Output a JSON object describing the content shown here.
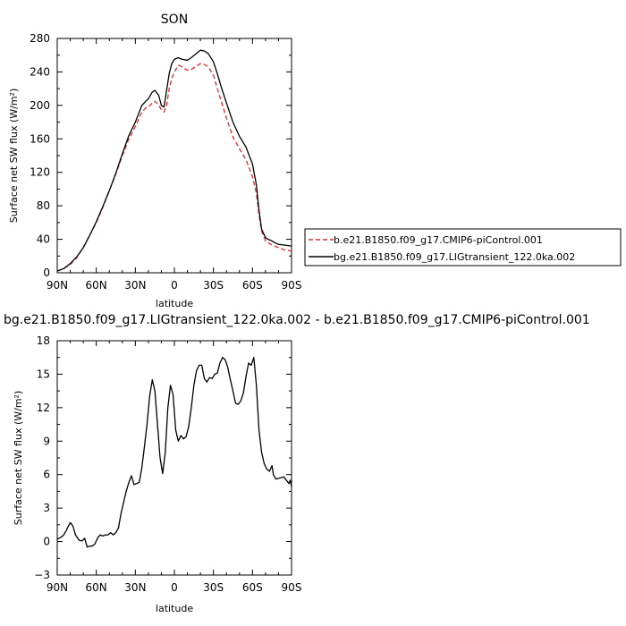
{
  "chart_data": [
    {
      "type": "line",
      "title": "SON",
      "xlabel": "latitude",
      "ylabel": "Surface net SW flux (W/m²)",
      "ylim": [
        0,
        280
      ],
      "xlim": [
        90,
        -90
      ],
      "x_ticks": [
        90,
        60,
        30,
        0,
        -30,
        -60,
        -90
      ],
      "x_tick_labels": [
        "90N",
        "60N",
        "30N",
        "0",
        "30S",
        "60S",
        "90S"
      ],
      "y_ticks": [
        0,
        40,
        80,
        120,
        160,
        200,
        240,
        280
      ],
      "y_tick_labels": [
        "0",
        "40",
        "80",
        "120",
        "160",
        "200",
        "240",
        "280"
      ],
      "legend_position": "right",
      "series": [
        {
          "name": "b.e21.B1850.f09_g17.CMIP6-piControl.001",
          "color": "#e8262b",
          "dash": "dashed",
          "points": [
            [
              90,
              2
            ],
            [
              85,
              5
            ],
            [
              80,
              10
            ],
            [
              75,
              18
            ],
            [
              70,
              30
            ],
            [
              65,
              45
            ],
            [
              60,
              60
            ],
            [
              55,
              78
            ],
            [
              50,
              98
            ],
            [
              45,
              118
            ],
            [
              40,
              140
            ],
            [
              35,
              160
            ],
            [
              30,
              175
            ],
            [
              27,
              185
            ],
            [
              25,
              192
            ],
            [
              22,
              197
            ],
            [
              20,
              198
            ],
            [
              17,
              203
            ],
            [
              15,
              205
            ],
            [
              12,
              200
            ],
            [
              10,
              195
            ],
            [
              8,
              192
            ],
            [
              6,
              200
            ],
            [
              4,
              220
            ],
            [
              2,
              232
            ],
            [
              0,
              240
            ],
            [
              -3,
              248
            ],
            [
              -6,
              246
            ],
            [
              -10,
              242
            ],
            [
              -13,
              243
            ],
            [
              -17,
              247
            ],
            [
              -20,
              250
            ],
            [
              -23,
              249
            ],
            [
              -26,
              246
            ],
            [
              -30,
              236
            ],
            [
              -33,
              220
            ],
            [
              -36,
              205
            ],
            [
              -40,
              185
            ],
            [
              -45,
              162
            ],
            [
              -50,
              148
            ],
            [
              -55,
              135
            ],
            [
              -60,
              115
            ],
            [
              -63,
              95
            ],
            [
              -65,
              70
            ],
            [
              -67,
              50
            ],
            [
              -70,
              38
            ],
            [
              -75,
              33
            ],
            [
              -80,
              30
            ],
            [
              -85,
              27
            ],
            [
              -90,
              26
            ]
          ]
        },
        {
          "name": "bg.e21.B1850.f09_g17.LIGtransient_122.0ka.002",
          "color": "#000000",
          "dash": "solid",
          "points": [
            [
              90,
              2
            ],
            [
              85,
              5
            ],
            [
              80,
              11
            ],
            [
              75,
              19
            ],
            [
              70,
              30
            ],
            [
              65,
              45
            ],
            [
              60,
              61
            ],
            [
              55,
              79
            ],
            [
              50,
              98
            ],
            [
              45,
              119
            ],
            [
              40,
              142
            ],
            [
              35,
              164
            ],
            [
              30,
              180
            ],
            [
              27,
              192
            ],
            [
              25,
              200
            ],
            [
              22,
              205
            ],
            [
              20,
              208
            ],
            [
              17,
              216
            ],
            [
              15,
              218
            ],
            [
              12,
              212
            ],
            [
              10,
              200
            ],
            [
              8,
              198
            ],
            [
              6,
              218
            ],
            [
              4,
              238
            ],
            [
              2,
              250
            ],
            [
              0,
              255
            ],
            [
              -3,
              257
            ],
            [
              -6,
              255
            ],
            [
              -10,
              254
            ],
            [
              -13,
              257
            ],
            [
              -17,
              262
            ],
            [
              -20,
              266
            ],
            [
              -23,
              265
            ],
            [
              -26,
              262
            ],
            [
              -30,
              252
            ],
            [
              -33,
              238
            ],
            [
              -36,
              222
            ],
            [
              -40,
              203
            ],
            [
              -45,
              180
            ],
            [
              -50,
              163
            ],
            [
              -55,
              150
            ],
            [
              -60,
              130
            ],
            [
              -63,
              105
            ],
            [
              -65,
              75
            ],
            [
              -67,
              52
            ],
            [
              -70,
              42
            ],
            [
              -72,
              40
            ],
            [
              -75,
              38
            ],
            [
              -77,
              36
            ],
            [
              -80,
              34
            ],
            [
              -85,
              33
            ],
            [
              -90,
              32
            ]
          ]
        }
      ]
    },
    {
      "type": "line",
      "title": "bg.e21.B1850.f09_g17.LIGtransient_122.0ka.002 - b.e21.B1850.f09_g17.CMIP6-piControl.001",
      "xlabel": "latitude",
      "ylabel": "Surface net SW flux (W/m²)",
      "ylim": [
        -3,
        18
      ],
      "xlim": [
        90,
        -90
      ],
      "x_ticks": [
        90,
        60,
        30,
        0,
        -30,
        -60,
        -90
      ],
      "x_tick_labels": [
        "90N",
        "60N",
        "30N",
        "0",
        "30S",
        "60S",
        "90S"
      ],
      "y_ticks": [
        -3,
        0,
        3,
        6,
        9,
        12,
        15,
        18
      ],
      "y_tick_labels": [
        "−3",
        "0",
        "3",
        "6",
        "9",
        "12",
        "15",
        "18"
      ],
      "series": [
        {
          "color": "#000000",
          "dash": "solid",
          "points": [
            [
              90,
              0.2
            ],
            [
              87,
              0.4
            ],
            [
              85,
              0.6
            ],
            [
              83,
              1.0
            ],
            [
              81,
              1.5
            ],
            [
              80,
              1.7
            ],
            [
              78,
              1.4
            ],
            [
              76,
              0.6
            ],
            [
              73,
              0.1
            ],
            [
              71,
              0.05
            ],
            [
              69,
              0.3
            ],
            [
              67,
              -0.5
            ],
            [
              65,
              -0.4
            ],
            [
              63,
              -0.4
            ],
            [
              61,
              -0.2
            ],
            [
              59,
              0.3
            ],
            [
              57,
              0.6
            ],
            [
              55,
              0.5
            ],
            [
              53,
              0.6
            ],
            [
              51,
              0.6
            ],
            [
              49,
              0.8
            ],
            [
              47,
              0.6
            ],
            [
              45,
              0.8
            ],
            [
              43,
              1.2
            ],
            [
              41,
              2.5
            ],
            [
              39,
              3.5
            ],
            [
              37,
              4.5
            ],
            [
              35,
              5.3
            ],
            [
              33,
              5.9
            ],
            [
              31,
              5.1
            ],
            [
              29,
              5.2
            ],
            [
              27,
              5.3
            ],
            [
              25,
              6.6
            ],
            [
              23,
              8.5
            ],
            [
              21,
              10.5
            ],
            [
              19,
              13.0
            ],
            [
              17,
              14.5
            ],
            [
              15,
              13.5
            ],
            [
              13,
              10.5
            ],
            [
              11,
              7.5
            ],
            [
              9,
              6.1
            ],
            [
              7,
              8.0
            ],
            [
              5,
              12.0
            ],
            [
              3,
              14.0
            ],
            [
              1,
              13.2
            ],
            [
              -1,
              10.0
            ],
            [
              -3,
              9.0
            ],
            [
              -5,
              9.5
            ],
            [
              -7,
              9.2
            ],
            [
              -9,
              9.4
            ],
            [
              -11,
              10.3
            ],
            [
              -13,
              12.0
            ],
            [
              -15,
              14.0
            ],
            [
              -17,
              15.3
            ],
            [
              -19,
              15.8
            ],
            [
              -21,
              15.8
            ],
            [
              -23,
              14.6
            ],
            [
              -25,
              14.3
            ],
            [
              -27,
              14.7
            ],
            [
              -29,
              14.6
            ],
            [
              -31,
              15.0
            ],
            [
              -33,
              15.1
            ],
            [
              -35,
              16.0
            ],
            [
              -37,
              16.5
            ],
            [
              -39,
              16.3
            ],
            [
              -41,
              15.6
            ],
            [
              -43,
              14.5
            ],
            [
              -45,
              13.5
            ],
            [
              -47,
              12.4
            ],
            [
              -49,
              12.3
            ],
            [
              -51,
              12.6
            ],
            [
              -53,
              13.3
            ],
            [
              -55,
              14.8
            ],
            [
              -57,
              16.0
            ],
            [
              -59,
              15.8
            ],
            [
              -61,
              16.5
            ],
            [
              -63,
              14.0
            ],
            [
              -65,
              10.0
            ],
            [
              -67,
              8.0
            ],
            [
              -69,
              7.0
            ],
            [
              -71,
              6.5
            ],
            [
              -73,
              6.3
            ],
            [
              -75,
              6.8
            ],
            [
              -76,
              6.0
            ],
            [
              -78,
              5.6
            ],
            [
              -81,
              5.7
            ],
            [
              -84,
              5.8
            ],
            [
              -86,
              5.5
            ],
            [
              -88,
              5.2
            ],
            [
              -89,
              5.5
            ],
            [
              -90,
              4.9
            ]
          ]
        }
      ]
    }
  ]
}
